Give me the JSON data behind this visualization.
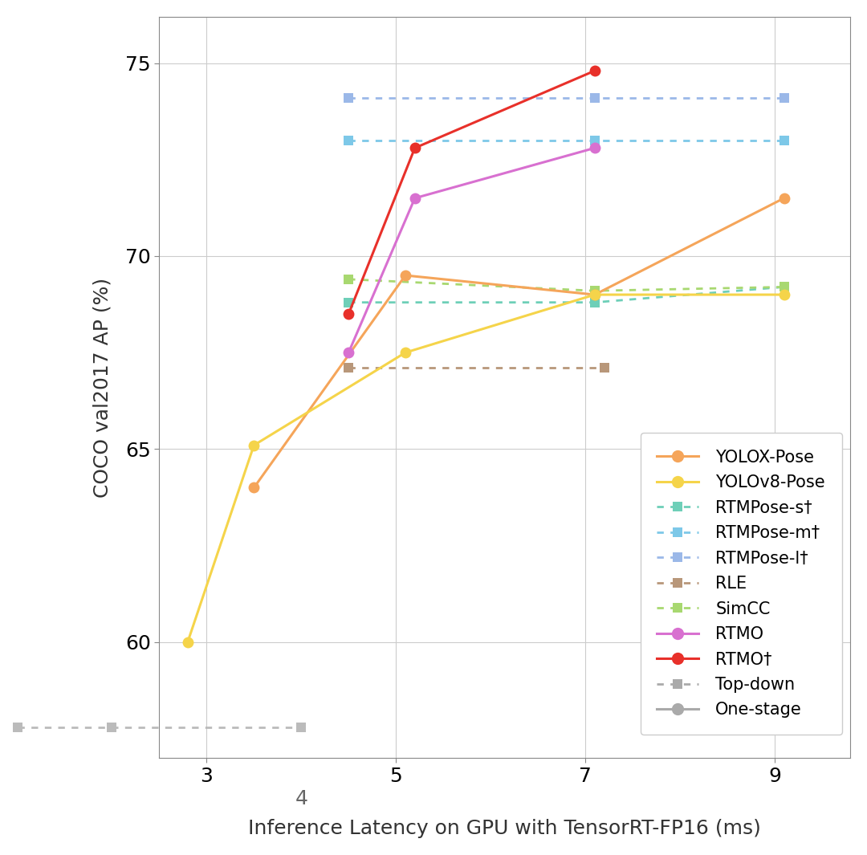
{
  "yolox_pose": {
    "x": [
      3.5,
      5.1,
      7.1,
      9.1
    ],
    "y": [
      64.0,
      69.5,
      69.0,
      71.5
    ],
    "color": "#F5A55A",
    "label": "YOLOX-Pose"
  },
  "yolov8_pose": {
    "x": [
      2.8,
      3.5,
      5.1,
      7.1,
      9.1
    ],
    "y": [
      60.0,
      65.1,
      67.5,
      69.0,
      69.0
    ],
    "color": "#F5D44A",
    "label": "YOLOv8-Pose"
  },
  "rtmo": {
    "x": [
      4.5,
      5.2,
      7.1
    ],
    "y": [
      67.5,
      71.5,
      72.8
    ],
    "color": "#D870D0",
    "label": "RTMO"
  },
  "rtmo_dag": {
    "x": [
      4.5,
      5.2,
      7.1
    ],
    "y": [
      68.5,
      72.8,
      74.8
    ],
    "color": "#E8302A",
    "label": "RTMO†"
  },
  "rtmpose_s": {
    "x": [
      4.5,
      7.1,
      9.1
    ],
    "y": [
      68.8,
      68.8,
      69.2
    ],
    "color": "#6ECFB8",
    "label": "RTMPose-s†"
  },
  "rtmpose_m": {
    "x": [
      4.5,
      7.1,
      9.1
    ],
    "y": [
      73.0,
      73.0,
      73.0
    ],
    "color": "#7DC8E8",
    "label": "RTMPose-m†"
  },
  "rtmpose_l": {
    "x": [
      4.5,
      7.1,
      9.1
    ],
    "y": [
      74.1,
      74.1,
      74.1
    ],
    "color": "#9BB8E8",
    "label": "RTMPose-l†"
  },
  "rle": {
    "x": [
      4.5,
      7.2
    ],
    "y": [
      67.1,
      67.1
    ],
    "color": "#B8977A",
    "label": "RLE"
  },
  "simcc": {
    "x": [
      4.5,
      7.1,
      9.1
    ],
    "y": [
      69.4,
      69.1,
      69.2
    ],
    "color": "#A8D870",
    "label": "SimCC"
  },
  "topdown_ref": {
    "x": [
      1.0,
      2.0,
      4.0
    ],
    "y": [
      57.8,
      57.8,
      57.8
    ],
    "color": "#BBBBBB"
  },
  "xlabel": "Inference Latency on GPU with TensorRT-FP16 (ms)",
  "ylabel": "COCO val2017 AP (%)",
  "xlim": [
    2.5,
    9.8
  ],
  "ylim": [
    57.0,
    76.2
  ],
  "main_xticks": [
    3,
    5,
    7,
    9
  ],
  "yticks": [
    60,
    65,
    70,
    75
  ],
  "bg_color": "#FFFFFF",
  "grid_color": "#CCCCCC",
  "font_size_ticks": 18,
  "font_size_labels": 18,
  "font_size_legend": 15,
  "marker_size_circle": 10,
  "marker_size_square": 8,
  "line_width": 2.2
}
